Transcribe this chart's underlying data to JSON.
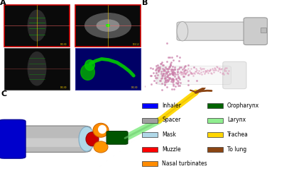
{
  "bg_color": "#FFFFFF",
  "panel_labels": [
    "A",
    "B",
    "C"
  ],
  "legend_left": [
    {
      "label": "Inhaler",
      "color": "#0000FF"
    },
    {
      "label": "Spacer",
      "color": "#A0A0A0"
    },
    {
      "label": "Mask",
      "color": "#B0D8E8"
    },
    {
      "label": "Muzzle",
      "color": "#FF0000"
    },
    {
      "label": "Nasal turbinates",
      "color": "#FF8C00"
    }
  ],
  "legend_right": [
    {
      "label": "Oropharynx",
      "color": "#006400"
    },
    {
      "label": "Larynx",
      "color": "#90EE90"
    },
    {
      "label": "Trachea",
      "color": "#FFD700"
    },
    {
      "label": "To lung",
      "color": "#8B4513"
    }
  ],
  "figure_width": 4.0,
  "figure_height": 2.49,
  "dpi": 100
}
